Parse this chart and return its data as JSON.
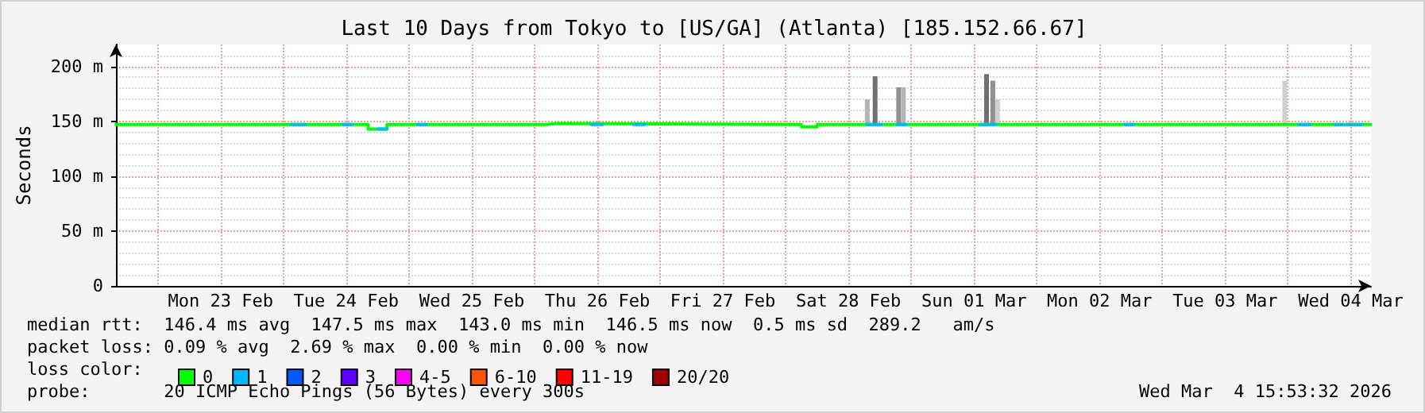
{
  "chart_data": {
    "type": "step",
    "title": "Last 10 Days from Tokyo to [US/GA] (Atlanta) [185.152.66.67]",
    "ylabel": "Seconds",
    "xlim": [
      "2026-02-22T16:00",
      "2026-03-04T15:53"
    ],
    "xticks": [
      {
        "value": "2026-02-23T00:00",
        "label": null
      },
      {
        "value": "2026-02-23T12:00",
        "label": "Mon 23 Feb"
      },
      {
        "value": "2026-02-24T00:00",
        "label": null
      },
      {
        "value": "2026-02-24T12:00",
        "label": "Tue 24 Feb"
      },
      {
        "value": "2026-02-25T00:00",
        "label": null
      },
      {
        "value": "2026-02-25T12:00",
        "label": "Wed 25 Feb"
      },
      {
        "value": "2026-02-26T00:00",
        "label": null
      },
      {
        "value": "2026-02-26T12:00",
        "label": "Thu 26 Feb"
      },
      {
        "value": "2026-02-27T00:00",
        "label": null
      },
      {
        "value": "2026-02-27T12:00",
        "label": "Fri 27 Feb"
      },
      {
        "value": "2026-02-28T00:00",
        "label": null
      },
      {
        "value": "2026-02-28T12:00",
        "label": "Sat 28 Feb"
      },
      {
        "value": "2026-03-01T00:00",
        "label": null
      },
      {
        "value": "2026-03-01T12:00",
        "label": "Sun 01 Mar"
      },
      {
        "value": "2026-03-02T00:00",
        "label": null
      },
      {
        "value": "2026-03-02T12:00",
        "label": "Mon 02 Mar"
      },
      {
        "value": "2026-03-03T00:00",
        "label": null
      },
      {
        "value": "2026-03-03T12:00",
        "label": "Tue 03 Mar"
      },
      {
        "value": "2026-03-04T00:00",
        "label": null
      },
      {
        "value": "2026-03-04T12:00",
        "label": "Wed 04 Mar"
      }
    ],
    "ylim": [
      0,
      220
    ],
    "yticks": [
      0,
      {
        "value": 50,
        "label": "50 m"
      },
      {
        "value": 100,
        "label": "100 m"
      },
      {
        "value": 150,
        "label": "150 m"
      },
      {
        "value": 200,
        "label": "200 m"
      }
    ],
    "grid": true,
    "legend": "bottom",
    "marker": "none",
    "line_style": "solid",
    "series": [
      {
        "type": "bar",
        "colors": [
          "#b4b4b4",
          "#707070",
          "#909090",
          "#b4b4b4",
          "#707070",
          "#909090",
          "#d0d0d0",
          "#d0d0d0"
        ],
        "x": [
          "2026-02-28T15:36",
          "2026-02-28T17:06",
          "2026-02-28T21:36",
          "2026-02-28T22:30",
          "2026-03-01T14:24",
          "2026-03-01T15:36",
          "2026-03-01T16:30",
          "2026-03-03T23:24"
        ],
        "base": [
          148,
          148,
          148,
          148,
          148,
          148,
          148,
          148
        ],
        "values": [
          22,
          43,
          33,
          33,
          45,
          39,
          22,
          39
        ]
      },
      {
        "name": "0",
        "color": "#00ff00",
        "x": [
          "2026-02-22T16:00",
          "2026-02-24T16:12",
          "2026-02-24T19:48",
          "2026-02-26T02:06",
          "2026-02-26T04:12",
          "2026-02-28T03:00",
          "2026-02-28T06:00",
          "2026-03-04T15:50"
        ],
        "values": [
          147,
          143,
          147,
          148,
          147,
          145,
          147,
          147
        ]
      },
      {
        "type": "line",
        "name": "1",
        "color": "#00b8ff",
        "x": [
          "2026-02-24T01:30",
          "2026-02-24T04:12",
          "2026-02-24T08:00",
          "2026-02-24T11:24",
          "2026-02-24T13:12",
          "2026-02-24T16:00",
          "2026-02-24T18:00",
          "2026-02-24T19:48",
          "2026-02-24T23:00",
          "2026-02-25T01:36",
          "2026-02-25T03:18",
          "2026-02-26T06:00",
          "2026-02-26T10:48",
          "2026-02-26T13:00",
          "2026-02-26T16:00",
          "2026-02-26T18:54",
          "2026-02-26T21:06",
          "2026-02-28T10:00",
          "2026-02-28T15:36",
          "2026-02-28T18:18",
          "2026-02-28T20:00",
          "2026-02-28T21:18",
          "2026-02-28T23:06",
          "2026-03-01T06:00",
          "2026-03-01T13:12",
          "2026-03-01T16:12",
          "2026-03-02T06:00",
          "2026-03-02T16:48",
          "2026-03-02T18:30",
          "2026-03-03T12:00",
          "2026-03-04T02:06",
          "2026-03-04T04:12",
          "2026-03-04T07:00",
          "2026-03-04T09:00",
          "2026-03-04T10:30",
          "2026-03-04T10:40",
          "2026-03-04T11:06",
          "2026-03-04T14:06"
        ],
        "values": [
          147,
          147,
          null,
          147,
          147,
          null,
          143,
          143,
          null,
          147,
          147,
          null,
          147,
          147,
          null,
          147,
          147,
          null,
          147,
          147,
          null,
          147,
          147,
          null,
          147,
          147,
          null,
          147,
          147,
          null,
          147,
          147,
          null,
          147,
          147,
          null,
          147,
          147
        ]
      },
      {
        "type": "line",
        "name": "2",
        "color": "#0059ff"
      },
      {
        "type": "line",
        "name": "3",
        "color": "#5e00ff"
      },
      {
        "type": "line",
        "name": "4-5",
        "color": "#ff00ff"
      },
      {
        "type": "line",
        "name": "6-10",
        "color": "#ff5500"
      },
      {
        "type": "line",
        "name": "11-19",
        "color": "#ff0000"
      },
      {
        "type": "line",
        "name": "20/20",
        "color": "#a10000"
      }
    ],
    "annotations": [
      "median rtt:  146.4 ms avg  147.5 ms max  143.0 ms min  146.5 ms now  0.5 ms sd  289.2   am/s",
      "packet loss: 0.09 % avg  2.69 % max  0.00 % min  0.00 % now",
      "loss color:",
      "probe:       20 ICMP Echo Pings (56 Bytes) every 300s",
      "Wed Mar  4 15:53:32 2026"
    ]
  }
}
